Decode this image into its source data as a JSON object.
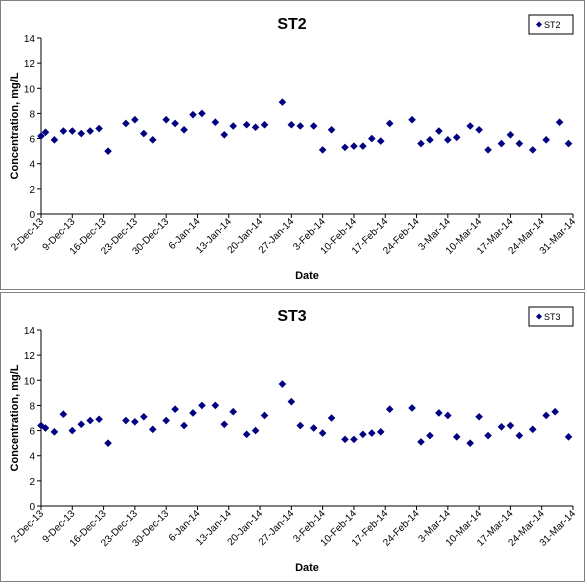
{
  "chart_data": [
    {
      "type": "scatter",
      "title": "ST2",
      "xlabel": "Date",
      "ylabel": "Concentration, mg/L",
      "ylim": [
        0,
        14
      ],
      "yticks": [
        0,
        2,
        4,
        6,
        8,
        10,
        12,
        14
      ],
      "xlim": [
        "2013-12-02",
        "2014-03-31"
      ],
      "xticks": [
        "2-Dec-13",
        "9-Dec-13",
        "16-Dec-13",
        "23-Dec-13",
        "30-Dec-13",
        "6-Jan-14",
        "13-Jan-14",
        "20-Jan-14",
        "27-Jan-14",
        "3-Feb-14",
        "10-Feb-14",
        "17-Feb-14",
        "24-Feb-14",
        "3-Mar-14",
        "10-Mar-14",
        "17-Mar-14",
        "24-Mar-14",
        "31-Mar-14"
      ],
      "grid": false,
      "legend_position": "top-right",
      "marker_color": "#000080",
      "series": [
        {
          "name": "ST2",
          "points": [
            [
              "2013-12-02",
              6.2
            ],
            [
              "2013-12-03",
              6.5
            ],
            [
              "2013-12-05",
              5.9
            ],
            [
              "2013-12-07",
              6.6
            ],
            [
              "2013-12-09",
              6.6
            ],
            [
              "2013-12-11",
              6.4
            ],
            [
              "2013-12-13",
              6.6
            ],
            [
              "2013-12-15",
              6.8
            ],
            [
              "2013-12-17",
              5.0
            ],
            [
              "2013-12-21",
              7.2
            ],
            [
              "2013-12-23",
              7.5
            ],
            [
              "2013-12-25",
              6.4
            ],
            [
              "2013-12-27",
              5.9
            ],
            [
              "2013-12-30",
              7.5
            ],
            [
              "2014-01-01",
              7.2
            ],
            [
              "2014-01-03",
              6.7
            ],
            [
              "2014-01-05",
              7.9
            ],
            [
              "2014-01-07",
              8.0
            ],
            [
              "2014-01-10",
              7.3
            ],
            [
              "2014-01-12",
              6.3
            ],
            [
              "2014-01-14",
              7.0
            ],
            [
              "2014-01-17",
              7.1
            ],
            [
              "2014-01-19",
              6.9
            ],
            [
              "2014-01-21",
              7.1
            ],
            [
              "2014-01-25",
              8.9
            ],
            [
              "2014-01-27",
              7.1
            ],
            [
              "2014-01-29",
              7.0
            ],
            [
              "2014-02-01",
              7.0
            ],
            [
              "2014-02-03",
              5.1
            ],
            [
              "2014-02-05",
              6.7
            ],
            [
              "2014-02-08",
              5.3
            ],
            [
              "2014-02-10",
              5.4
            ],
            [
              "2014-02-12",
              5.4
            ],
            [
              "2014-02-14",
              6.0
            ],
            [
              "2014-02-16",
              5.8
            ],
            [
              "2014-02-18",
              7.2
            ],
            [
              "2014-02-23",
              7.5
            ],
            [
              "2014-02-25",
              5.6
            ],
            [
              "2014-02-27",
              5.9
            ],
            [
              "2014-03-01",
              6.6
            ],
            [
              "2014-03-03",
              5.9
            ],
            [
              "2014-03-05",
              6.1
            ],
            [
              "2014-03-08",
              7.0
            ],
            [
              "2014-03-10",
              6.7
            ],
            [
              "2014-03-12",
              5.1
            ],
            [
              "2014-03-15",
              5.6
            ],
            [
              "2014-03-17",
              6.3
            ],
            [
              "2014-03-19",
              5.6
            ],
            [
              "2014-03-22",
              5.1
            ],
            [
              "2014-03-25",
              5.9
            ],
            [
              "2014-03-28",
              7.3
            ],
            [
              "2014-03-30",
              5.6
            ]
          ]
        }
      ]
    },
    {
      "type": "scatter",
      "title": "ST3",
      "xlabel": "Date",
      "ylabel": "Concentration, mg/L",
      "ylim": [
        0,
        14
      ],
      "yticks": [
        0,
        2,
        4,
        6,
        8,
        10,
        12,
        14
      ],
      "xlim": [
        "2013-12-02",
        "2014-03-31"
      ],
      "xticks": [
        "2-Dec-13",
        "9-Dec-13",
        "16-Dec-13",
        "23-Dec-13",
        "30-Dec-13",
        "6-Jan-14",
        "13-Jan-14",
        "20-Jan-14",
        "27-Jan-14",
        "3-Feb-14",
        "10-Feb-14",
        "17-Feb-14",
        "24-Feb-14",
        "3-Mar-14",
        "10-Mar-14",
        "17-Mar-14",
        "24-Mar-14",
        "31-Mar-14"
      ],
      "grid": false,
      "legend_position": "top-right",
      "marker_color": "#000080",
      "series": [
        {
          "name": "ST3",
          "points": [
            [
              "2013-12-02",
              6.4
            ],
            [
              "2013-12-03",
              6.2
            ],
            [
              "2013-12-05",
              5.9
            ],
            [
              "2013-12-07",
              7.3
            ],
            [
              "2013-12-09",
              6.0
            ],
            [
              "2013-12-11",
              6.5
            ],
            [
              "2013-12-13",
              6.8
            ],
            [
              "2013-12-15",
              6.9
            ],
            [
              "2013-12-17",
              5.0
            ],
            [
              "2013-12-21",
              6.8
            ],
            [
              "2013-12-23",
              6.7
            ],
            [
              "2013-12-25",
              7.1
            ],
            [
              "2013-12-27",
              6.1
            ],
            [
              "2013-12-30",
              6.8
            ],
            [
              "2014-01-01",
              7.7
            ],
            [
              "2014-01-03",
              6.4
            ],
            [
              "2014-01-05",
              7.4
            ],
            [
              "2014-01-07",
              8.0
            ],
            [
              "2014-01-10",
              8.0
            ],
            [
              "2014-01-12",
              6.5
            ],
            [
              "2014-01-14",
              7.5
            ],
            [
              "2014-01-17",
              5.7
            ],
            [
              "2014-01-19",
              6.0
            ],
            [
              "2014-01-21",
              7.2
            ],
            [
              "2014-01-25",
              9.7
            ],
            [
              "2014-01-27",
              8.3
            ],
            [
              "2014-01-29",
              6.4
            ],
            [
              "2014-02-01",
              6.2
            ],
            [
              "2014-02-03",
              5.8
            ],
            [
              "2014-02-05",
              7.0
            ],
            [
              "2014-02-08",
              5.3
            ],
            [
              "2014-02-10",
              5.3
            ],
            [
              "2014-02-12",
              5.7
            ],
            [
              "2014-02-14",
              5.8
            ],
            [
              "2014-02-16",
              5.9
            ],
            [
              "2014-02-18",
              7.7
            ],
            [
              "2014-02-23",
              7.8
            ],
            [
              "2014-02-25",
              5.1
            ],
            [
              "2014-02-27",
              5.6
            ],
            [
              "2014-03-01",
              7.4
            ],
            [
              "2014-03-03",
              7.2
            ],
            [
              "2014-03-05",
              5.5
            ],
            [
              "2014-03-08",
              5.0
            ],
            [
              "2014-03-10",
              7.1
            ],
            [
              "2014-03-12",
              5.6
            ],
            [
              "2014-03-15",
              6.3
            ],
            [
              "2014-03-17",
              6.4
            ],
            [
              "2014-03-19",
              5.6
            ],
            [
              "2014-03-22",
              6.1
            ],
            [
              "2014-03-25",
              7.2
            ],
            [
              "2014-03-27",
              7.5
            ],
            [
              "2014-03-30",
              5.5
            ]
          ]
        }
      ]
    }
  ]
}
